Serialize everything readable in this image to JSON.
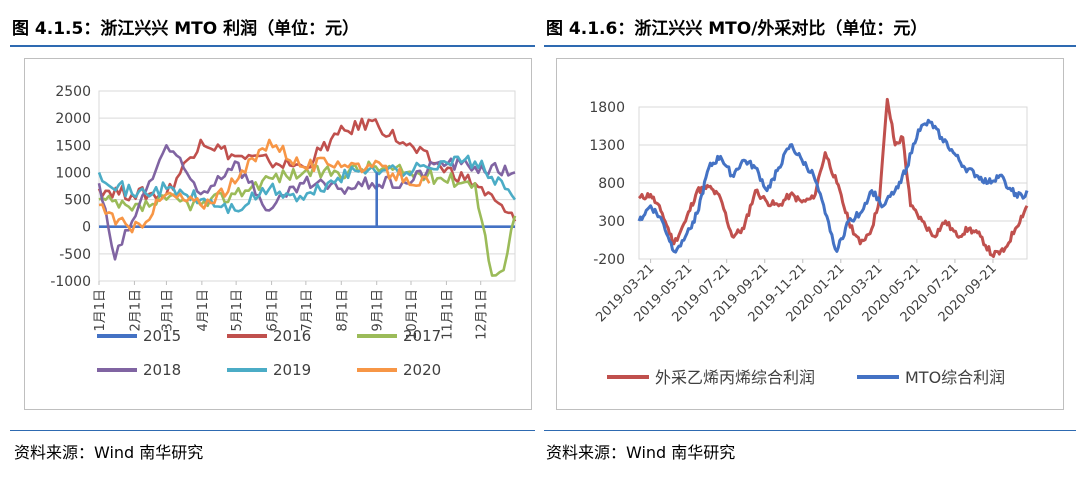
{
  "left": {
    "title": "图 4.1.5：浙江兴兴 MTO 利润（单位：元）",
    "source": "资料来源：Wind  南华研究"
  },
  "right": {
    "title": "图 4.1.6：浙江兴兴 MTO/外采对比（单位：元）",
    "source": "资料来源：Wind  南华研究"
  },
  "chart_data": [
    {
      "type": "line",
      "title": "",
      "xlabel": "",
      "ylabel": "",
      "ylim": [
        -1000,
        2500
      ],
      "yticks": [
        -1000,
        -500,
        0,
        500,
        1000,
        1500,
        2000,
        2500
      ],
      "categories": [
        "1月1日",
        "2月1日",
        "3月1日",
        "4月1日",
        "5月1日",
        "6月1日",
        "7月1日",
        "8月1日",
        "9月1日",
        "10月1日",
        "11月1日",
        "12月1日"
      ],
      "x_unit": "day_of_year",
      "grid": true,
      "legend": "bottom",
      "series": [
        {
          "name": "2015",
          "color": "#4472c4",
          "x": [
            1,
            360
          ],
          "values": [
            0,
            0
          ],
          "note_points": [
            [
              1,
              0
            ],
            [
              244,
              0
            ],
            [
              246,
              800
            ],
            [
              300,
              900
            ],
            [
              330,
              1000
            ],
            [
              365,
              900
            ]
          ]
        },
        {
          "name": "2016",
          "color": "#c0504d",
          "x": [
            1,
            30,
            60,
            90,
            120,
            150,
            180,
            210,
            240,
            270,
            300,
            330,
            365
          ],
          "values": [
            700,
            600,
            600,
            1600,
            1300,
            1200,
            1100,
            1700,
            1950,
            1500,
            1100,
            800,
            100
          ]
        },
        {
          "name": "2017",
          "color": "#9bbb59",
          "x": [
            1,
            30,
            60,
            90,
            120,
            150,
            180,
            210,
            240,
            270,
            300,
            330,
            345,
            355,
            365
          ],
          "values": [
            500,
            300,
            500,
            400,
            600,
            900,
            1000,
            1000,
            1100,
            1000,
            900,
            800,
            -900,
            -800,
            200
          ]
        },
        {
          "name": "2018",
          "color": "#8064a2",
          "x": [
            1,
            15,
            30,
            60,
            90,
            120,
            150,
            180,
            210,
            240,
            270,
            300,
            330,
            365
          ],
          "values": [
            800,
            -600,
            100,
            1500,
            600,
            1200,
            300,
            800,
            700,
            800,
            800,
            1200,
            1100,
            1000
          ]
        },
        {
          "name": "2019",
          "color": "#4bacc6",
          "x": [
            1,
            30,
            60,
            90,
            120,
            150,
            180,
            210,
            240,
            270,
            300,
            330,
            365
          ],
          "values": [
            1000,
            600,
            700,
            500,
            300,
            700,
            500,
            900,
            1100,
            1000,
            1200,
            1200,
            500
          ]
        },
        {
          "name": "2020",
          "color": "#f79646",
          "x": [
            1,
            30,
            60,
            90,
            120,
            150,
            180,
            210,
            240,
            270,
            290
          ],
          "values": [
            400,
            -100,
            600,
            400,
            800,
            1600,
            1100,
            1200,
            1100,
            900,
            800
          ]
        }
      ]
    },
    {
      "type": "line",
      "title": "",
      "xlabel": "",
      "ylabel": "",
      "ylim": [
        -200,
        1800
      ],
      "yticks": [
        -200,
        300,
        800,
        1300,
        1800
      ],
      "categories": [
        "2019-03-21",
        "2019-05-21",
        "2019-07-21",
        "2019-09-21",
        "2019-11-21",
        "2020-01-21",
        "2020-03-21",
        "2020-05-21",
        "2020-07-21",
        "2020-09-21"
      ],
      "grid": true,
      "legend": "bottom",
      "series": [
        {
          "name": "外采乙烯丙烯综合利润",
          "color": "#c0504d",
          "x": [
            0,
            0.3,
            0.6,
            0.9,
            1.2,
            1.5,
            1.8,
            2.1,
            2.4,
            2.7,
            3.0,
            3.3,
            3.6,
            3.9,
            4.2,
            4.5,
            4.8,
            5.1,
            5.4,
            5.7,
            6.0,
            6.2,
            6.4,
            6.6,
            6.8,
            7.0,
            7.3,
            7.6,
            7.9,
            8.2,
            8.5,
            8.8,
            9.1,
            9.4,
            9.7,
            10.0
          ],
          "values": [
            600,
            650,
            400,
            0,
            300,
            700,
            750,
            600,
            100,
            200,
            700,
            550,
            500,
            650,
            550,
            600,
            1200,
            800,
            300,
            0,
            200,
            600,
            1900,
            1300,
            1400,
            500,
            300,
            100,
            300,
            100,
            200,
            100,
            -150,
            -100,
            200,
            500
          ]
        },
        {
          "name": "MTO综合利润",
          "color": "#4472c4",
          "x": [
            0,
            0.3,
            0.6,
            0.9,
            1.2,
            1.5,
            1.8,
            2.1,
            2.4,
            2.7,
            3.0,
            3.3,
            3.6,
            3.9,
            4.2,
            4.5,
            4.8,
            5.1,
            5.4,
            5.7,
            6.0,
            6.3,
            6.6,
            6.9,
            7.2,
            7.5,
            7.8,
            8.1,
            8.4,
            8.7,
            9.0,
            9.3,
            9.6,
            9.9,
            10.0
          ],
          "values": [
            300,
            500,
            300,
            -100,
            100,
            400,
            1000,
            1150,
            900,
            1100,
            1000,
            700,
            1000,
            1300,
            1100,
            900,
            400,
            -100,
            300,
            400,
            700,
            500,
            700,
            1000,
            1500,
            1600,
            1400,
            1200,
            1000,
            900,
            800,
            900,
            700,
            600,
            700
          ]
        }
      ]
    }
  ]
}
